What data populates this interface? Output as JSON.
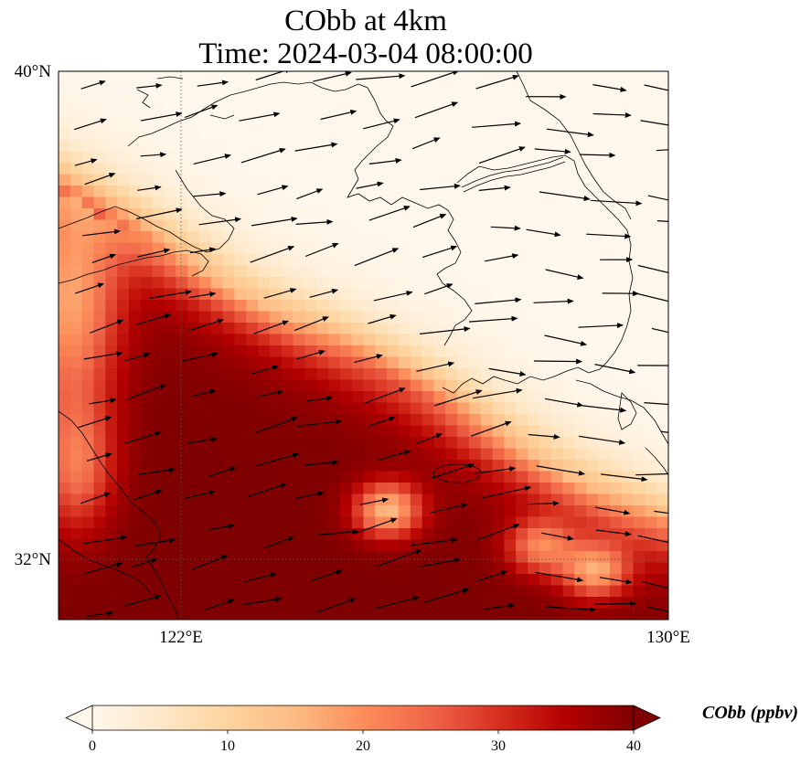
{
  "title": {
    "line1": "CObb at 4km",
    "line2": "Time: 2024-03-04 08:00:00"
  },
  "axes": {
    "y_ticks": [
      {
        "label": "40°N",
        "lat": 40
      },
      {
        "label": "32°N",
        "lat": 32
      }
    ],
    "x_ticks": [
      {
        "label": "122°E",
        "lon": 122
      },
      {
        "label": "130°E",
        "lon": 130
      }
    ],
    "lon_range": [
      120,
      130
    ],
    "lat_range": [
      31,
      40
    ],
    "gridlines": "dotted"
  },
  "colorbar": {
    "label": "CObb (ppbv)",
    "ticks": [
      "0",
      "10",
      "20",
      "30",
      "40"
    ],
    "range": [
      0,
      40
    ],
    "extend": "both",
    "colormap": "OrRd",
    "colors": [
      "#fff7ec",
      "#fee8c8",
      "#fdd49e",
      "#fdbb84",
      "#fc8d59",
      "#ef6548",
      "#d7301f",
      "#b30000",
      "#7f0000"
    ]
  },
  "chart_data": {
    "type": "heatmap",
    "variable": "CObb",
    "units": "ppbv",
    "level": "4km",
    "time": "2024-03-04 08:00:00",
    "field_summary": {
      "low_region": "north-east (Liaodong, Korea, Yellow Sea north) below 2 ppbv",
      "high_region": "south-west (Yellow Sea south, East China) above 40 ppbv",
      "local_minima": [
        {
          "lon": 125.4,
          "lat": 32.8,
          "value": 15
        },
        {
          "lon": 127.9,
          "lat": 32.2,
          "value": 22
        },
        {
          "lon": 128.8,
          "lat": 31.8,
          "value": 18
        }
      ]
    },
    "wind_vectors": "present, predominantly westerly to west-south-westerly"
  }
}
